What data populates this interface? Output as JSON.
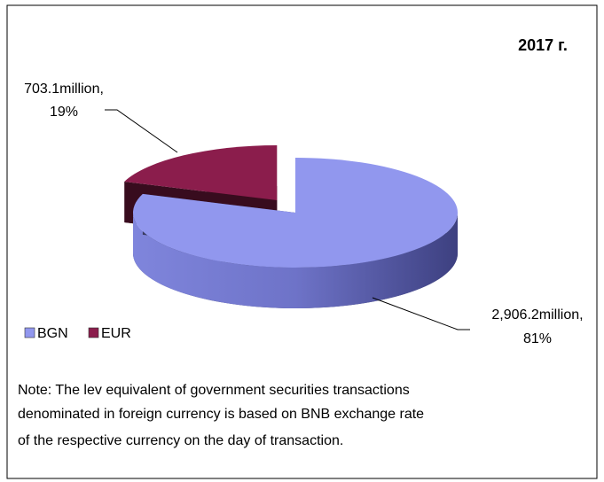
{
  "chart_data": {
    "type": "pie3d",
    "annotation": "2017 г.",
    "categories": [
      "BGN",
      "EUR"
    ],
    "values": [
      2906.2,
      703.1
    ],
    "value_labels": [
      "2,906.2million,",
      "703.1million,"
    ],
    "percents": [
      81,
      19
    ],
    "percent_labels": [
      "81%",
      "19%"
    ],
    "colors": [
      "#9197ee",
      "#8b1d4c"
    ],
    "exploded": [
      "EUR"
    ]
  },
  "note": [
    "Note: The lev equivalent of government securities transactions",
    "denominated in foreign currency is based on BNB exchange rate",
    "of the respective currency on the day  of transaction."
  ]
}
